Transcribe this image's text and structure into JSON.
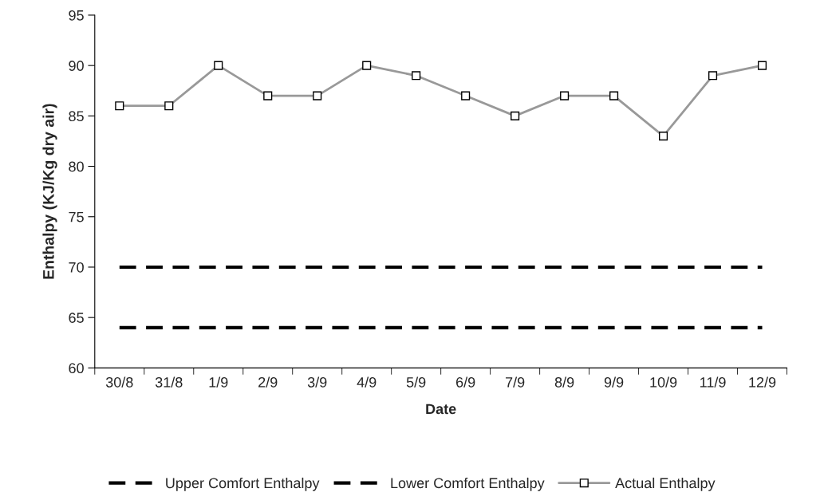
{
  "chart_data": {
    "type": "line",
    "xlabel": "Date",
    "ylabel": "Enthalpy (KJ/Kg dry air)",
    "categories": [
      "30/8",
      "31/8",
      "1/9",
      "2/9",
      "3/9",
      "4/9",
      "5/9",
      "6/9",
      "7/9",
      "8/9",
      "9/9",
      "10/9",
      "11/9",
      "12/9"
    ],
    "ylim": [
      60,
      95
    ],
    "yticks": [
      60,
      65,
      70,
      75,
      80,
      85,
      90,
      95
    ],
    "grid": false,
    "legend": "bottom",
    "series": [
      {
        "name": "Upper Comfort Enthalpy",
        "color": "#000000",
        "line_style": "dashed",
        "marker": "none",
        "values": [
          70,
          70,
          70,
          70,
          70,
          70,
          70,
          70,
          70,
          70,
          70,
          70,
          70,
          70
        ]
      },
      {
        "name": "Lower Comfort Enthalpy",
        "color": "#000000",
        "line_style": "dashed",
        "marker": "none",
        "values": [
          64,
          64,
          64,
          64,
          64,
          64,
          64,
          64,
          64,
          64,
          64,
          64,
          64,
          64
        ]
      },
      {
        "name": "Actual Enthalpy",
        "color": "#999999",
        "line_style": "solid",
        "marker": "square",
        "values": [
          86,
          86,
          90,
          87,
          87,
          90,
          89,
          87,
          85,
          87,
          87,
          83,
          89,
          90
        ]
      }
    ]
  }
}
